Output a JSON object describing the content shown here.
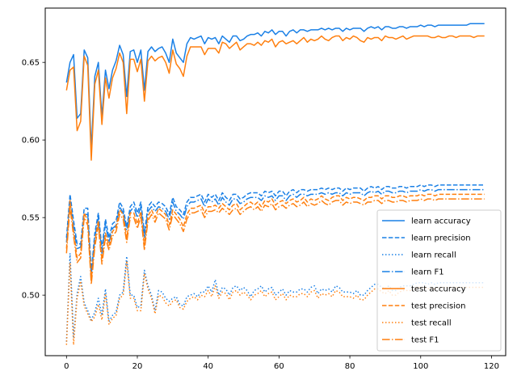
{
  "chart_data": {
    "type": "line",
    "title": "",
    "xlabel": "",
    "ylabel": "",
    "xlim": [
      -6,
      124
    ],
    "ylim": [
      0.461,
      0.685
    ],
    "x_ticks": [
      0,
      20,
      40,
      60,
      80,
      100,
      120
    ],
    "y_ticks": [
      0.5,
      0.55,
      0.6,
      0.65
    ],
    "y_tick_labels": [
      "0.50",
      "0.55",
      "0.60",
      "0.65"
    ],
    "grid": false,
    "legend": {
      "placement": "lower-right"
    },
    "colors": {
      "learn": "#1a80e6",
      "test": "#ff7f0e"
    },
    "x": [
      0,
      1,
      2,
      3,
      4,
      5,
      6,
      7,
      8,
      9,
      10,
      11,
      12,
      13,
      14,
      15,
      16,
      17,
      18,
      19,
      20,
      21,
      22,
      23,
      24,
      25,
      26,
      27,
      28,
      29,
      30,
      31,
      32,
      33,
      34,
      35,
      36,
      37,
      38,
      39,
      40,
      41,
      42,
      43,
      44,
      45,
      46,
      47,
      48,
      49,
      50,
      51,
      52,
      53,
      54,
      55,
      56,
      57,
      58,
      59,
      60,
      61,
      62,
      63,
      64,
      65,
      66,
      67,
      68,
      69,
      70,
      71,
      72,
      73,
      74,
      75,
      76,
      77,
      78,
      79,
      80,
      81,
      82,
      83,
      84,
      85,
      86,
      87,
      88,
      89,
      90,
      91,
      92,
      93,
      94,
      95,
      96,
      97,
      98,
      99,
      100,
      101,
      102,
      103,
      104,
      105,
      106,
      107,
      108,
      109,
      110,
      111,
      112,
      113,
      114,
      115,
      116,
      117,
      118
    ],
    "series": [
      {
        "name": "learn accuracy",
        "color": "#1a80e6",
        "dash": "solid",
        "values": [
          0.637,
          0.65,
          0.655,
          0.614,
          0.617,
          0.658,
          0.653,
          0.594,
          0.641,
          0.65,
          0.615,
          0.645,
          0.633,
          0.645,
          0.651,
          0.661,
          0.655,
          0.628,
          0.657,
          0.658,
          0.65,
          0.658,
          0.632,
          0.657,
          0.66,
          0.657,
          0.659,
          0.66,
          0.656,
          0.65,
          0.665,
          0.656,
          0.653,
          0.65,
          0.662,
          0.666,
          0.665,
          0.666,
          0.667,
          0.662,
          0.666,
          0.665,
          0.666,
          0.662,
          0.667,
          0.665,
          0.663,
          0.667,
          0.667,
          0.664,
          0.665,
          0.667,
          0.668,
          0.668,
          0.669,
          0.667,
          0.67,
          0.669,
          0.671,
          0.668,
          0.67,
          0.67,
          0.667,
          0.67,
          0.671,
          0.669,
          0.671,
          0.671,
          0.67,
          0.671,
          0.671,
          0.671,
          0.672,
          0.671,
          0.672,
          0.671,
          0.672,
          0.672,
          0.67,
          0.672,
          0.671,
          0.672,
          0.672,
          0.672,
          0.67,
          0.672,
          0.673,
          0.672,
          0.673,
          0.671,
          0.673,
          0.673,
          0.672,
          0.672,
          0.673,
          0.673,
          0.672,
          0.673,
          0.673,
          0.673,
          0.674,
          0.673,
          0.674,
          0.674,
          0.673,
          0.674,
          0.674,
          0.674,
          0.674,
          0.674,
          0.674,
          0.674,
          0.674,
          0.674,
          0.675,
          0.675,
          0.675,
          0.675,
          0.675
        ]
      },
      {
        "name": "learn precision",
        "color": "#1a80e6",
        "dash": "dashed",
        "values": [
          0.537,
          0.565,
          0.548,
          0.533,
          0.533,
          0.556,
          0.556,
          0.515,
          0.54,
          0.553,
          0.53,
          0.549,
          0.537,
          0.546,
          0.548,
          0.56,
          0.556,
          0.544,
          0.557,
          0.56,
          0.553,
          0.56,
          0.54,
          0.557,
          0.56,
          0.557,
          0.56,
          0.559,
          0.557,
          0.552,
          0.563,
          0.557,
          0.555,
          0.552,
          0.56,
          0.563,
          0.563,
          0.564,
          0.565,
          0.56,
          0.565,
          0.563,
          0.565,
          0.561,
          0.566,
          0.563,
          0.561,
          0.565,
          0.565,
          0.562,
          0.563,
          0.565,
          0.566,
          0.566,
          0.566,
          0.564,
          0.567,
          0.566,
          0.567,
          0.564,
          0.567,
          0.567,
          0.564,
          0.567,
          0.568,
          0.566,
          0.568,
          0.568,
          0.567,
          0.568,
          0.568,
          0.568,
          0.569,
          0.568,
          0.569,
          0.568,
          0.569,
          0.569,
          0.567,
          0.569,
          0.568,
          0.569,
          0.569,
          0.569,
          0.567,
          0.569,
          0.57,
          0.569,
          0.57,
          0.568,
          0.57,
          0.57,
          0.569,
          0.569,
          0.57,
          0.57,
          0.569,
          0.57,
          0.57,
          0.57,
          0.571,
          0.57,
          0.571,
          0.571,
          0.57,
          0.571,
          0.571,
          0.571,
          0.571,
          0.571,
          0.571,
          0.571,
          0.571,
          0.571,
          0.571,
          0.571,
          0.571,
          0.571,
          0.571
        ]
      },
      {
        "name": "learn recall",
        "color": "#1a80e6",
        "dash": "dotted",
        "values": [
          0.47,
          0.527,
          0.473,
          0.501,
          0.512,
          0.495,
          0.49,
          0.484,
          0.489,
          0.498,
          0.487,
          0.504,
          0.483,
          0.487,
          0.489,
          0.5,
          0.502,
          0.525,
          0.5,
          0.5,
          0.492,
          0.493,
          0.516,
          0.506,
          0.5,
          0.49,
          0.503,
          0.502,
          0.498,
          0.496,
          0.498,
          0.499,
          0.494,
          0.493,
          0.499,
          0.5,
          0.501,
          0.499,
          0.502,
          0.502,
          0.506,
          0.502,
          0.51,
          0.5,
          0.505,
          0.504,
          0.5,
          0.505,
          0.506,
          0.503,
          0.505,
          0.503,
          0.499,
          0.503,
          0.504,
          0.506,
          0.502,
          0.504,
          0.505,
          0.5,
          0.502,
          0.504,
          0.5,
          0.503,
          0.502,
          0.502,
          0.504,
          0.504,
          0.502,
          0.505,
          0.506,
          0.501,
          0.504,
          0.503,
          0.504,
          0.502,
          0.506,
          0.505,
          0.502,
          0.502,
          0.502,
          0.501,
          0.503,
          0.5,
          0.5,
          0.503,
          0.505,
          0.507,
          0.507,
          0.505,
          0.504,
          0.506,
          0.503,
          0.503,
          0.505,
          0.506,
          0.506,
          0.506,
          0.507,
          0.508,
          0.508,
          0.508,
          0.507,
          0.508,
          0.507,
          0.508,
          0.508,
          0.508,
          0.508,
          0.508,
          0.508,
          0.508,
          0.508,
          0.508,
          0.508,
          0.508,
          0.508,
          0.508,
          0.508
        ]
      },
      {
        "name": "learn F1",
        "color": "#1a80e6",
        "dash": "dashdot",
        "values": [
          0.534,
          0.561,
          0.544,
          0.53,
          0.531,
          0.552,
          0.552,
          0.513,
          0.537,
          0.55,
          0.527,
          0.546,
          0.534,
          0.543,
          0.545,
          0.557,
          0.553,
          0.542,
          0.554,
          0.557,
          0.55,
          0.557,
          0.537,
          0.554,
          0.557,
          0.554,
          0.557,
          0.556,
          0.554,
          0.549,
          0.56,
          0.554,
          0.552,
          0.549,
          0.557,
          0.56,
          0.56,
          0.561,
          0.562,
          0.557,
          0.562,
          0.56,
          0.562,
          0.558,
          0.563,
          0.56,
          0.558,
          0.562,
          0.562,
          0.559,
          0.56,
          0.562,
          0.563,
          0.563,
          0.563,
          0.561,
          0.564,
          0.563,
          0.564,
          0.561,
          0.564,
          0.564,
          0.561,
          0.564,
          0.565,
          0.563,
          0.565,
          0.565,
          0.564,
          0.565,
          0.565,
          0.565,
          0.566,
          0.565,
          0.566,
          0.565,
          0.566,
          0.566,
          0.564,
          0.566,
          0.565,
          0.566,
          0.566,
          0.566,
          0.564,
          0.566,
          0.567,
          0.566,
          0.567,
          0.565,
          0.567,
          0.567,
          0.566,
          0.566,
          0.567,
          0.567,
          0.566,
          0.567,
          0.567,
          0.567,
          0.568,
          0.567,
          0.568,
          0.568,
          0.567,
          0.568,
          0.568,
          0.568,
          0.568,
          0.568,
          0.568,
          0.568,
          0.568,
          0.568,
          0.568,
          0.568,
          0.568,
          0.568,
          0.568
        ]
      },
      {
        "name": "test accuracy",
        "color": "#ff7f0e",
        "dash": "solid",
        "values": [
          0.632,
          0.645,
          0.647,
          0.606,
          0.612,
          0.654,
          0.648,
          0.587,
          0.636,
          0.645,
          0.61,
          0.64,
          0.627,
          0.64,
          0.646,
          0.656,
          0.65,
          0.617,
          0.652,
          0.652,
          0.644,
          0.652,
          0.625,
          0.651,
          0.654,
          0.651,
          0.653,
          0.654,
          0.65,
          0.643,
          0.658,
          0.649,
          0.646,
          0.641,
          0.654,
          0.66,
          0.66,
          0.66,
          0.66,
          0.655,
          0.659,
          0.659,
          0.659,
          0.656,
          0.663,
          0.662,
          0.659,
          0.661,
          0.663,
          0.658,
          0.66,
          0.662,
          0.662,
          0.661,
          0.663,
          0.661,
          0.664,
          0.663,
          0.665,
          0.66,
          0.663,
          0.664,
          0.662,
          0.663,
          0.664,
          0.662,
          0.664,
          0.666,
          0.663,
          0.665,
          0.664,
          0.665,
          0.667,
          0.665,
          0.664,
          0.666,
          0.667,
          0.667,
          0.664,
          0.666,
          0.665,
          0.667,
          0.666,
          0.664,
          0.663,
          0.666,
          0.665,
          0.666,
          0.666,
          0.664,
          0.667,
          0.666,
          0.666,
          0.665,
          0.666,
          0.667,
          0.665,
          0.666,
          0.667,
          0.667,
          0.667,
          0.667,
          0.667,
          0.666,
          0.666,
          0.667,
          0.666,
          0.666,
          0.667,
          0.667,
          0.666,
          0.667,
          0.667,
          0.667,
          0.667,
          0.666,
          0.667,
          0.667,
          0.667
        ]
      },
      {
        "name": "test precision",
        "color": "#ff7f0e",
        "dash": "dashed",
        "values": [
          0.53,
          0.561,
          0.541,
          0.524,
          0.527,
          0.553,
          0.548,
          0.51,
          0.534,
          0.548,
          0.523,
          0.54,
          0.532,
          0.541,
          0.544,
          0.555,
          0.552,
          0.537,
          0.553,
          0.553,
          0.546,
          0.554,
          0.532,
          0.551,
          0.555,
          0.55,
          0.556,
          0.554,
          0.552,
          0.545,
          0.555,
          0.552,
          0.549,
          0.544,
          0.552,
          0.556,
          0.556,
          0.557,
          0.558,
          0.553,
          0.557,
          0.557,
          0.558,
          0.556,
          0.559,
          0.557,
          0.555,
          0.558,
          0.559,
          0.555,
          0.557,
          0.559,
          0.56,
          0.558,
          0.56,
          0.557,
          0.561,
          0.56,
          0.562,
          0.558,
          0.56,
          0.561,
          0.559,
          0.561,
          0.562,
          0.56,
          0.561,
          0.563,
          0.56,
          0.562,
          0.561,
          0.562,
          0.564,
          0.562,
          0.561,
          0.563,
          0.564,
          0.564,
          0.561,
          0.563,
          0.562,
          0.563,
          0.563,
          0.562,
          0.561,
          0.563,
          0.563,
          0.564,
          0.564,
          0.562,
          0.564,
          0.564,
          0.563,
          0.563,
          0.564,
          0.564,
          0.563,
          0.564,
          0.564,
          0.564,
          0.565,
          0.564,
          0.565,
          0.565,
          0.564,
          0.565,
          0.565,
          0.565,
          0.565,
          0.565,
          0.565,
          0.565,
          0.565,
          0.565,
          0.565,
          0.565,
          0.565,
          0.565,
          0.565
        ]
      },
      {
        "name": "test recall",
        "color": "#ff7f0e",
        "dash": "dotted",
        "values": [
          0.468,
          0.521,
          0.468,
          0.498,
          0.509,
          0.493,
          0.488,
          0.483,
          0.486,
          0.494,
          0.484,
          0.501,
          0.481,
          0.485,
          0.487,
          0.498,
          0.5,
          0.522,
          0.498,
          0.498,
          0.49,
          0.49,
          0.514,
          0.504,
          0.498,
          0.488,
          0.5,
          0.499,
          0.495,
          0.493,
          0.496,
          0.497,
          0.492,
          0.491,
          0.496,
          0.498,
          0.499,
          0.497,
          0.5,
          0.499,
          0.503,
          0.499,
          0.506,
          0.498,
          0.502,
          0.501,
          0.497,
          0.502,
          0.503,
          0.5,
          0.502,
          0.5,
          0.497,
          0.5,
          0.501,
          0.503,
          0.499,
          0.501,
          0.502,
          0.497,
          0.499,
          0.501,
          0.497,
          0.5,
          0.499,
          0.499,
          0.501,
          0.501,
          0.499,
          0.502,
          0.503,
          0.498,
          0.501,
          0.5,
          0.501,
          0.499,
          0.503,
          0.502,
          0.499,
          0.499,
          0.499,
          0.498,
          0.5,
          0.497,
          0.497,
          0.5,
          0.502,
          0.504,
          0.504,
          0.502,
          0.501,
          0.503,
          0.5,
          0.5,
          0.502,
          0.503,
          0.503,
          0.503,
          0.504,
          0.505,
          0.505,
          0.505,
          0.504,
          0.505,
          0.504,
          0.505,
          0.505,
          0.505,
          0.505,
          0.505,
          0.505,
          0.505,
          0.505,
          0.505,
          0.505,
          0.505,
          0.505,
          0.505,
          0.505
        ]
      },
      {
        "name": "test F1",
        "color": "#ff7f0e",
        "dash": "dashdot",
        "values": [
          0.527,
          0.557,
          0.538,
          0.521,
          0.524,
          0.55,
          0.545,
          0.507,
          0.531,
          0.545,
          0.52,
          0.537,
          0.529,
          0.538,
          0.541,
          0.552,
          0.549,
          0.534,
          0.55,
          0.55,
          0.543,
          0.551,
          0.529,
          0.548,
          0.552,
          0.547,
          0.553,
          0.551,
          0.549,
          0.542,
          0.552,
          0.549,
          0.546,
          0.541,
          0.549,
          0.553,
          0.553,
          0.554,
          0.555,
          0.55,
          0.554,
          0.554,
          0.555,
          0.553,
          0.556,
          0.554,
          0.552,
          0.555,
          0.556,
          0.552,
          0.554,
          0.556,
          0.557,
          0.555,
          0.557,
          0.554,
          0.558,
          0.557,
          0.559,
          0.555,
          0.557,
          0.558,
          0.556,
          0.558,
          0.559,
          0.557,
          0.558,
          0.56,
          0.557,
          0.559,
          0.558,
          0.559,
          0.561,
          0.559,
          0.558,
          0.56,
          0.561,
          0.561,
          0.558,
          0.56,
          0.559,
          0.56,
          0.56,
          0.559,
          0.558,
          0.56,
          0.56,
          0.561,
          0.561,
          0.559,
          0.561,
          0.561,
          0.56,
          0.56,
          0.561,
          0.561,
          0.56,
          0.561,
          0.561,
          0.561,
          0.562,
          0.561,
          0.562,
          0.562,
          0.561,
          0.562,
          0.562,
          0.562,
          0.562,
          0.562,
          0.562,
          0.562,
          0.562,
          0.562,
          0.562,
          0.562,
          0.562,
          0.562,
          0.562
        ]
      }
    ]
  }
}
